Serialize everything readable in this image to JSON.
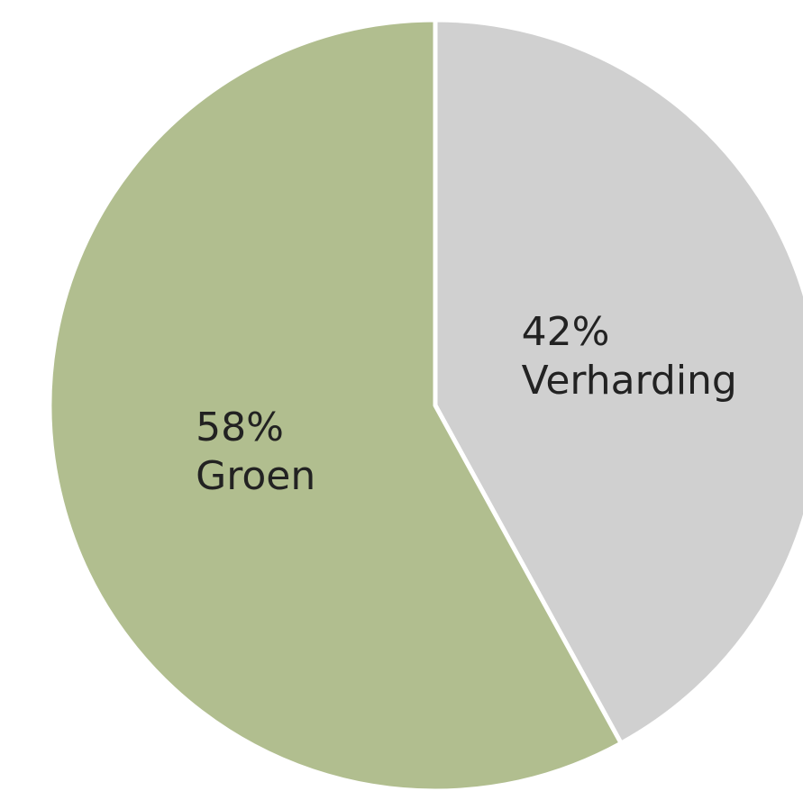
{
  "chart_data": {
    "type": "pie",
    "categories": [
      "Verharding",
      "Groen"
    ],
    "values": [
      42,
      58
    ],
    "value_labels": [
      "42%",
      "58%"
    ],
    "colors": [
      "#d0d0d0",
      "#b1be8f"
    ]
  }
}
